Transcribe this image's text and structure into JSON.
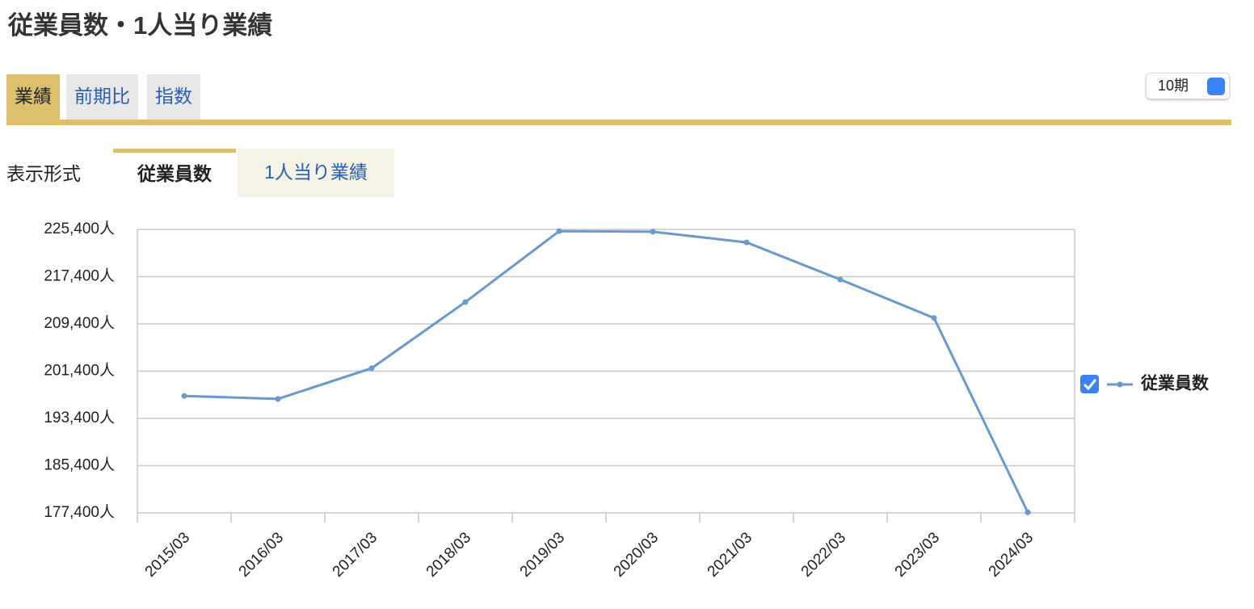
{
  "header": {
    "title": "従業員数・1人当り業績"
  },
  "tabs": [
    "業績",
    "前期比",
    "指数"
  ],
  "period_select": "10期",
  "display": {
    "label": "表示形式",
    "tabs": [
      "従業員数",
      "1人当り業績"
    ]
  },
  "chart_data": {
    "type": "line",
    "categories": [
      "2015/03",
      "2016/03",
      "2017/03",
      "2018/03",
      "2019/03",
      "2020/03",
      "2021/03",
      "2022/03",
      "2023/03",
      "2024/03"
    ],
    "series": [
      {
        "name": "従業員数",
        "color": "#6a98d0",
        "values": [
          197200,
          196700,
          201900,
          213100,
          225100,
          225000,
          223200,
          216900,
          210400,
          177500
        ]
      }
    ],
    "ylim": [
      177400,
      225400
    ],
    "yticks": [
      {
        "value": 177400,
        "label": "177,400人"
      },
      {
        "value": 185400,
        "label": "185,400人"
      },
      {
        "value": 193400,
        "label": "193,400人"
      },
      {
        "value": 201400,
        "label": "201,400人"
      },
      {
        "value": 209400,
        "label": "209,400人"
      },
      {
        "value": 217400,
        "label": "217,400人"
      },
      {
        "value": 225400,
        "label": "225,400人"
      }
    ],
    "grid": true
  }
}
